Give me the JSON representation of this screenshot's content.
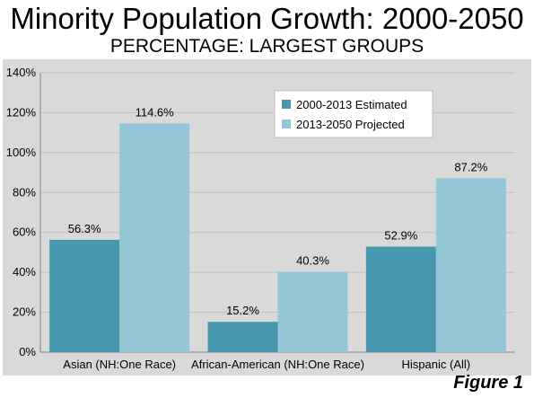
{
  "title": "Minority Population Growth: 2000-2050",
  "subtitle": "PERCENTAGE: LARGEST GROUPS",
  "figure_label": "Figure 1",
  "colors": {
    "series_1": "#4598b0",
    "series_2": "#93c6d6",
    "panel": "#d9d9d9",
    "gridline": "#bfbfbf"
  },
  "chart_data": {
    "type": "bar",
    "categories": [
      "Asian (NH:One Race)",
      "African-American (NH:One Race)",
      "Hispanic (All)"
    ],
    "series": [
      {
        "name": "2000-2013 Estimated",
        "values": [
          56.3,
          15.2,
          52.9
        ],
        "labels": [
          "56.3%",
          "15.2%",
          "52.9%"
        ]
      },
      {
        "name": "2013-2050 Projected",
        "values": [
          114.6,
          40.3,
          87.2
        ],
        "labels": [
          "114.6%",
          "40.3%",
          "87.2%"
        ]
      }
    ],
    "ylim": [
      0,
      140
    ],
    "yticks": [
      "0%",
      "20%",
      "40%",
      "60%",
      "80%",
      "100%",
      "120%",
      "140%"
    ],
    "grid": true,
    "legend_position": "top-right"
  }
}
